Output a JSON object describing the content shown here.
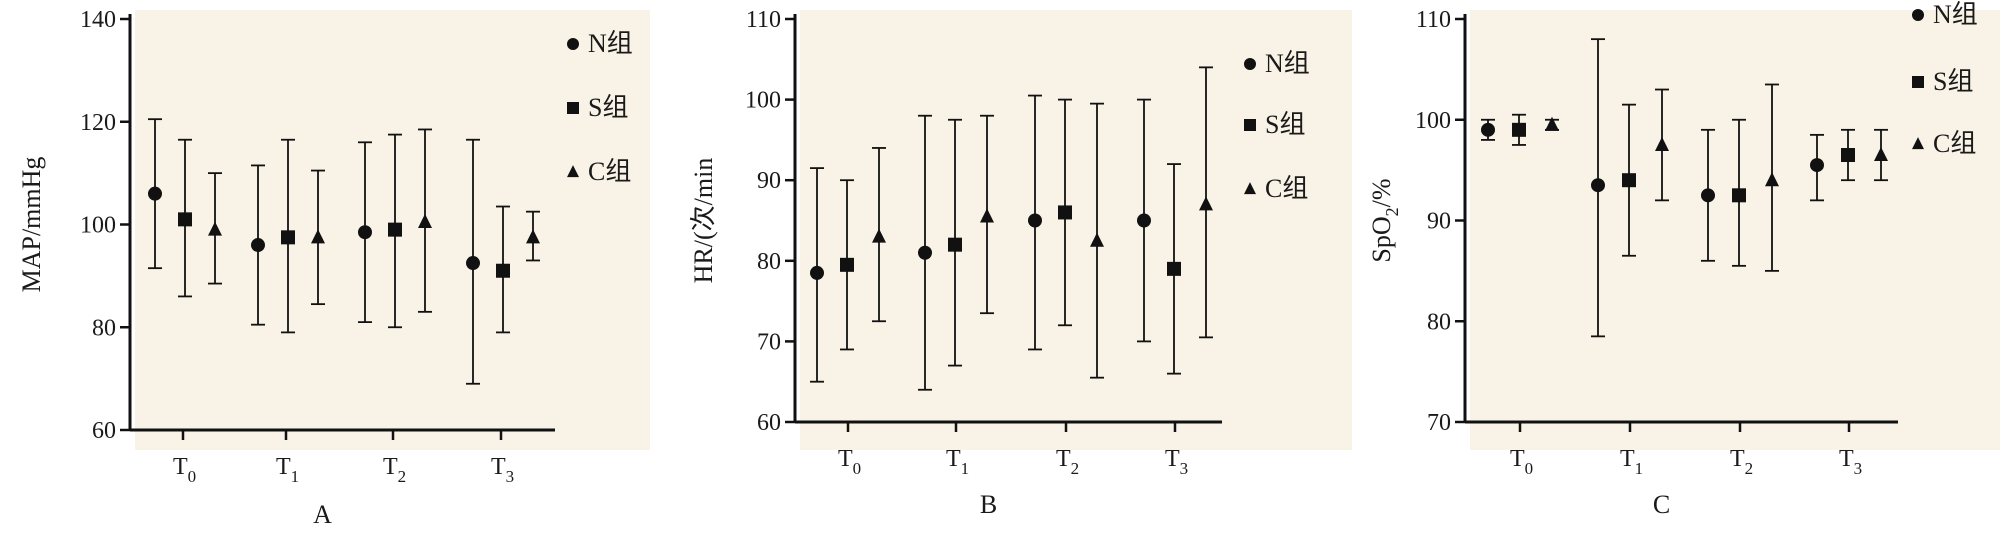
{
  "colors": {
    "panel_bg": "#f8f3e6",
    "ink": "#111111"
  },
  "chart_data": [
    {
      "type": "scatter",
      "panel_label": "A",
      "ylabel": "MAP/mmHg",
      "ylim": [
        60,
        140
      ],
      "yticks": [
        60,
        80,
        100,
        120,
        140
      ],
      "categories": [
        "T0",
        "T1",
        "T2",
        "T3"
      ],
      "error_bars": true,
      "legend_position": "top-right",
      "series": [
        {
          "name": "N组",
          "marker": "circle",
          "values": [
            106,
            96,
            98.5,
            92.5
          ],
          "lower": [
            91.5,
            80.5,
            81,
            69
          ],
          "upper": [
            120.5,
            111.5,
            116,
            116.5
          ]
        },
        {
          "name": "S组",
          "marker": "square",
          "values": [
            101,
            97.5,
            99,
            91
          ],
          "lower": [
            86,
            79,
            80,
            79
          ],
          "upper": [
            116.5,
            116.5,
            117.5,
            103.5
          ]
        },
        {
          "name": "C组",
          "marker": "triangle",
          "values": [
            99,
            97.5,
            100.5,
            97.5
          ],
          "lower": [
            88.5,
            84.5,
            83,
            93
          ],
          "upper": [
            110,
            110.5,
            118.5,
            102.5
          ]
        }
      ]
    },
    {
      "type": "scatter",
      "panel_label": "B",
      "ylabel": "HR/(次/min",
      "ylim": [
        60,
        110
      ],
      "yticks": [
        60,
        70,
        80,
        90,
        100,
        110
      ],
      "categories": [
        "T0",
        "T1",
        "T2",
        "T3"
      ],
      "error_bars": true,
      "legend_position": "top-right",
      "series": [
        {
          "name": "N组",
          "marker": "circle",
          "values": [
            78.5,
            81,
            85,
            85
          ],
          "lower": [
            65,
            64,
            69,
            70
          ],
          "upper": [
            91.5,
            98,
            100.5,
            100
          ]
        },
        {
          "name": "S组",
          "marker": "square",
          "values": [
            79.5,
            82,
            86,
            79
          ],
          "lower": [
            69,
            67,
            72,
            66
          ],
          "upper": [
            90,
            97.5,
            100,
            92
          ]
        },
        {
          "name": "C组",
          "marker": "triangle",
          "values": [
            83,
            85.5,
            82.5,
            87
          ],
          "lower": [
            72.5,
            73.5,
            65.5,
            70.5
          ],
          "upper": [
            94,
            98,
            99.5,
            104
          ]
        }
      ]
    },
    {
      "type": "scatter",
      "panel_label": "C",
      "ylabel": "SpO2/%",
      "ylabel_main": "SpO",
      "ylabel_sub": "2",
      "ylabel_rest": "/%",
      "ylim": [
        70,
        110
      ],
      "yticks": [
        70,
        80,
        90,
        100,
        110
      ],
      "categories": [
        "T0",
        "T1",
        "T2",
        "T3"
      ],
      "error_bars": true,
      "legend_position": "top-right",
      "series": [
        {
          "name": "N组",
          "marker": "circle",
          "values": [
            99,
            93.5,
            92.5,
            95.5
          ],
          "lower": [
            98,
            78.5,
            86,
            92
          ],
          "upper": [
            100,
            108,
            99,
            98.5
          ]
        },
        {
          "name": "S组",
          "marker": "square",
          "values": [
            99,
            94,
            92.5,
            96.5
          ],
          "lower": [
            97.5,
            86.5,
            85.5,
            94
          ],
          "upper": [
            100.5,
            101.5,
            100,
            99
          ]
        },
        {
          "name": "C组",
          "marker": "triangle",
          "values": [
            99.5,
            97.5,
            94,
            96.5
          ],
          "lower": [
            99,
            92,
            85,
            94
          ],
          "upper": [
            100,
            103,
            103.5,
            99
          ]
        }
      ]
    }
  ]
}
